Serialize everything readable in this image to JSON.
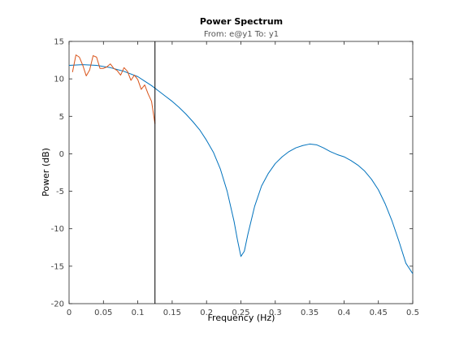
{
  "chart_data": {
    "type": "line",
    "title": "Power Spectrum",
    "subtitle": "From: e@y1  To: y1",
    "xlabel": "Frequency  (Hz)",
    "ylabel": "Power (dB)",
    "xlim": [
      0,
      0.5
    ],
    "ylim": [
      -20,
      15
    ],
    "xticks": [
      0,
      0.05,
      0.1,
      0.15,
      0.2,
      0.25,
      0.3,
      0.35,
      0.4,
      0.45,
      0.5
    ],
    "yticks": [
      -20,
      -15,
      -10,
      -5,
      0,
      5,
      10,
      15
    ],
    "xtick_labels": [
      "0",
      "0.05",
      "0.1",
      "0.15",
      "0.2",
      "0.25",
      "0.3",
      "0.35",
      "0.4",
      "0.45",
      "0.5"
    ],
    "ytick_labels": [
      "-20",
      "-15",
      "-10",
      "-5",
      "0",
      "5",
      "10",
      "15"
    ],
    "grid": false,
    "vline_x": 0.125,
    "series": [
      {
        "color": "#0072bd",
        "x": [
          0,
          0.02,
          0.04,
          0.06,
          0.08,
          0.1,
          0.11,
          0.12,
          0.13,
          0.14,
          0.15,
          0.16,
          0.17,
          0.18,
          0.19,
          0.2,
          0.21,
          0.22,
          0.23,
          0.24,
          0.245,
          0.25,
          0.255,
          0.26,
          0.27,
          0.28,
          0.29,
          0.3,
          0.31,
          0.32,
          0.33,
          0.34,
          0.35,
          0.36,
          0.37,
          0.38,
          0.39,
          0.4,
          0.41,
          0.42,
          0.43,
          0.44,
          0.45,
          0.46,
          0.47,
          0.48,
          0.49,
          0.5
        ],
        "values": [
          11.8,
          11.9,
          11.8,
          11.5,
          11.0,
          10.3,
          9.7,
          9.1,
          8.4,
          7.7,
          7.0,
          6.2,
          5.3,
          4.3,
          3.2,
          1.8,
          0.2,
          -2.0,
          -5.0,
          -9.0,
          -11.5,
          -13.7,
          -13.0,
          -10.8,
          -7.0,
          -4.3,
          -2.6,
          -1.3,
          -0.4,
          0.3,
          0.8,
          1.1,
          1.3,
          1.2,
          0.8,
          0.3,
          -0.1,
          -0.4,
          -0.9,
          -1.5,
          -2.3,
          -3.4,
          -4.8,
          -6.7,
          -9.0,
          -11.7,
          -14.6,
          -16.0
        ]
      },
      {
        "color": "#d95319",
        "x": [
          0.005,
          0.01,
          0.015,
          0.02,
          0.025,
          0.03,
          0.035,
          0.04,
          0.045,
          0.05,
          0.055,
          0.06,
          0.065,
          0.07,
          0.075,
          0.08,
          0.085,
          0.09,
          0.095,
          0.1,
          0.105,
          0.11,
          0.115,
          0.12,
          0.125
        ],
        "values": [
          10.9,
          13.2,
          12.9,
          11.8,
          10.4,
          11.2,
          13.1,
          12.9,
          11.4,
          11.4,
          11.6,
          12.0,
          11.4,
          11.1,
          10.5,
          11.5,
          11.0,
          9.8,
          10.5,
          9.9,
          8.6,
          9.2,
          8.0,
          7.0,
          4.0
        ]
      }
    ]
  }
}
